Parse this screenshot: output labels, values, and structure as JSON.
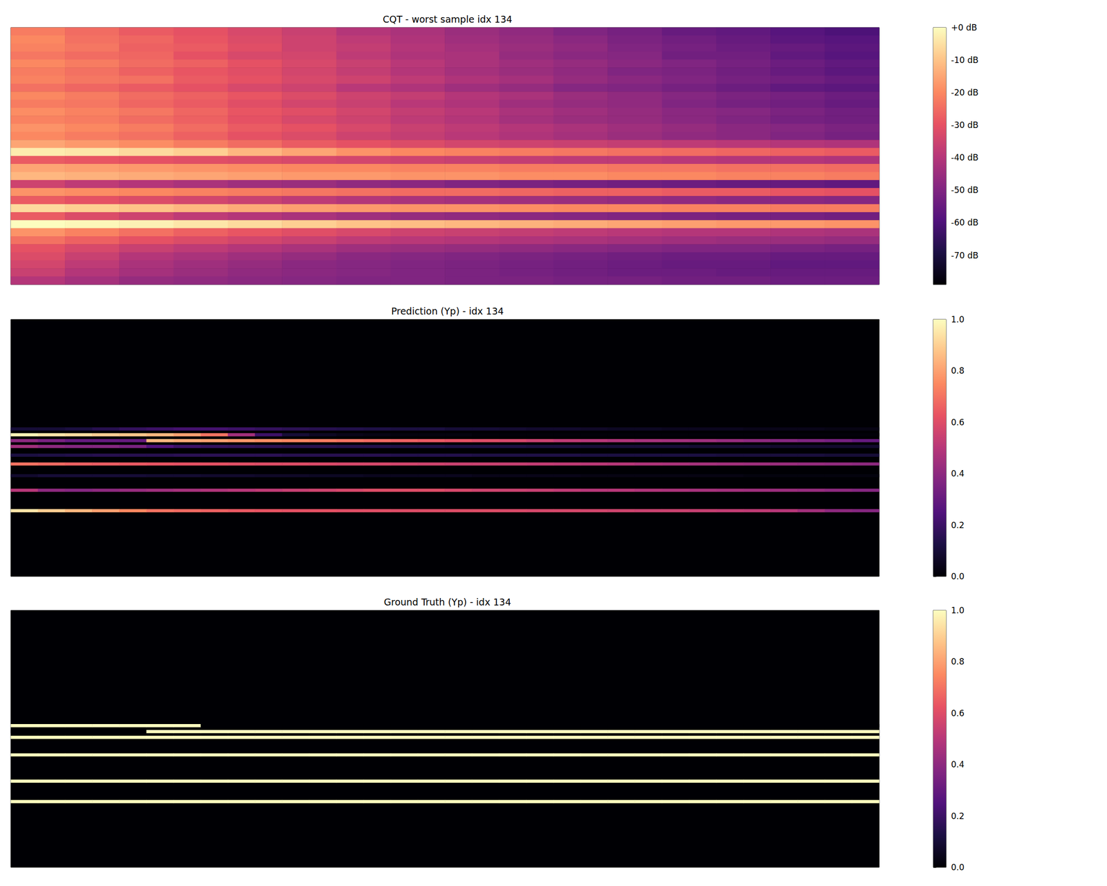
{
  "chart_data": [
    {
      "type": "heatmap",
      "title": "CQT - worst sample idx 134",
      "tick_labels": false,
      "colorbar": {
        "range": [
          -79,
          0
        ],
        "ticks": [
          {
            "value": 0,
            "label": "+0 dB"
          },
          {
            "value": -10,
            "label": "-10 dB"
          },
          {
            "value": -20,
            "label": "-20 dB"
          },
          {
            "value": -30,
            "label": "-30 dB"
          },
          {
            "value": -40,
            "label": "-40 dB"
          },
          {
            "value": -50,
            "label": "-50 dB"
          },
          {
            "value": -60,
            "label": "-60 dB"
          },
          {
            "value": -70,
            "label": "-70 dB"
          }
        ]
      },
      "values": [
        [
          -22,
          -25,
          -28,
          -30,
          -33,
          -36,
          -40,
          -42,
          -45,
          -47,
          -50,
          -52,
          -55,
          -56,
          -58,
          -60
        ],
        [
          -20,
          -24,
          -26,
          -29,
          -32,
          -35,
          -38,
          -41,
          -44,
          -46,
          -48,
          -51,
          -53,
          -55,
          -57,
          -58
        ],
        [
          -21,
          -23,
          -27,
          -28,
          -31,
          -35,
          -37,
          -40,
          -43,
          -45,
          -47,
          -50,
          -52,
          -54,
          -55,
          -57
        ],
        [
          -23,
          -25,
          -26,
          -30,
          -33,
          -34,
          -38,
          -41,
          -42,
          -46,
          -48,
          -49,
          -53,
          -53,
          -56,
          -58
        ],
        [
          -20,
          -22,
          -25,
          -27,
          -30,
          -33,
          -36,
          -39,
          -42,
          -44,
          -46,
          -48,
          -50,
          -52,
          -54,
          -56
        ],
        [
          -22,
          -24,
          -27,
          -29,
          -31,
          -34,
          -37,
          -40,
          -43,
          -45,
          -47,
          -50,
          -51,
          -53,
          -55,
          -57
        ],
        [
          -21,
          -23,
          -24,
          -28,
          -30,
          -33,
          -35,
          -38,
          -41,
          -43,
          -46,
          -48,
          -50,
          -52,
          -53,
          -55
        ],
        [
          -24,
          -26,
          -28,
          -30,
          -33,
          -35,
          -39,
          -41,
          -44,
          -46,
          -49,
          -50,
          -52,
          -54,
          -56,
          -57
        ],
        [
          -20,
          -22,
          -25,
          -27,
          -29,
          -32,
          -35,
          -37,
          -40,
          -42,
          -45,
          -47,
          -49,
          -51,
          -52,
          -54
        ],
        [
          -22,
          -23,
          -26,
          -28,
          -31,
          -34,
          -36,
          -39,
          -41,
          -44,
          -46,
          -47,
          -50,
          -52,
          -53,
          -55
        ],
        [
          -19,
          -21,
          -23,
          -26,
          -29,
          -31,
          -34,
          -37,
          -39,
          -42,
          -44,
          -46,
          -48,
          -49,
          -51,
          -53
        ],
        [
          -21,
          -22,
          -25,
          -27,
          -30,
          -33,
          -35,
          -38,
          -40,
          -43,
          -45,
          -46,
          -48,
          -50,
          -52,
          -53
        ],
        [
          -18,
          -20,
          -22,
          -25,
          -28,
          -30,
          -33,
          -36,
          -38,
          -40,
          -42,
          -44,
          -46,
          -48,
          -49,
          -51
        ],
        [
          -20,
          -22,
          -24,
          -27,
          -30,
          -32,
          -35,
          -37,
          -39,
          -41,
          -43,
          -45,
          -47,
          -48,
          -50,
          -52
        ],
        [
          -15,
          -17,
          -19,
          -22,
          -25,
          -28,
          -30,
          -32,
          -34,
          -35,
          -36,
          -37,
          -38,
          -39,
          -40,
          -41
        ],
        [
          -3,
          -4,
          -6,
          -8,
          -12,
          -15,
          -18,
          -20,
          -21,
          -22,
          -23,
          -24,
          -25,
          -26,
          -27,
          -28
        ],
        [
          -28,
          -29,
          -30,
          -31,
          -32,
          -33,
          -34,
          -35,
          -36,
          -37,
          -38,
          -38,
          -39,
          -40,
          -40,
          -41
        ],
        [
          -15,
          -16,
          -17,
          -18,
          -19,
          -20,
          -20,
          -21,
          -21,
          -22,
          -22,
          -23,
          -23,
          -24,
          -24,
          -25
        ],
        [
          -12,
          -13,
          -14,
          -15,
          -16,
          -17,
          -17,
          -18,
          -18,
          -19,
          -19,
          -20,
          -20,
          -21,
          -21,
          -22
        ],
        [
          -35,
          -38,
          -40,
          -42,
          -44,
          -45,
          -47,
          -48,
          -50,
          -51,
          -52,
          -53,
          -54,
          -55,
          -55,
          -56
        ],
        [
          -18,
          -19,
          -20,
          -21,
          -22,
          -23,
          -24,
          -25,
          -25,
          -26,
          -27,
          -27,
          -28,
          -28,
          -29,
          -30
        ],
        [
          -28,
          -30,
          -32,
          -34,
          -36,
          -38,
          -40,
          -42,
          -43,
          -44,
          -45,
          -46,
          -47,
          -48,
          -48,
          -49
        ],
        [
          -6,
          -8,
          -10,
          -12,
          -14,
          -16,
          -17,
          -18,
          -18,
          -19,
          -20,
          -20,
          -21,
          -21,
          -22,
          -22
        ],
        [
          -28,
          -32,
          -35,
          -38,
          -40,
          -42,
          -44,
          -46,
          -47,
          -48,
          -49,
          -50,
          -51,
          -52,
          -52,
          -53
        ],
        [
          0,
          -1,
          -2,
          -4,
          -6,
          -8,
          -10,
          -11,
          -12,
          -13,
          -14,
          -15,
          -16,
          -17,
          -17,
          -18
        ],
        [
          -18,
          -21,
          -24,
          -27,
          -29,
          -31,
          -33,
          -35,
          -36,
          -37,
          -38,
          -39,
          -40,
          -40,
          -41,
          -42
        ],
        [
          -24,
          -27,
          -30,
          -32,
          -34,
          -36,
          -38,
          -39,
          -40,
          -41,
          -42,
          -43,
          -44,
          -45,
          -45,
          -46
        ],
        [
          -30,
          -33,
          -36,
          -38,
          -40,
          -42,
          -44,
          -45,
          -46,
          -47,
          -48,
          -49,
          -50,
          -50,
          -51,
          -52
        ],
        [
          -32,
          -36,
          -40,
          -42,
          -44,
          -46,
          -48,
          -49,
          -50,
          -51,
          -52,
          -53,
          -54,
          -54,
          -55,
          -55
        ],
        [
          -34,
          -38,
          -42,
          -44,
          -46,
          -48,
          -49,
          -50,
          -51,
          -52,
          -53,
          -54,
          -55,
          -55,
          -56,
          -56
        ],
        [
          -36,
          -40,
          -43,
          -45,
          -47,
          -48,
          -49,
          -50,
          -51,
          -52,
          -53,
          -54,
          -54,
          -55,
          -55,
          -55
        ],
        [
          -40,
          -43,
          -46,
          -47,
          -48,
          -49,
          -50,
          -50,
          -51,
          -51,
          -52,
          -52,
          -53,
          -53,
          -54,
          -54
        ]
      ]
    },
    {
      "type": "heatmap",
      "title": "Prediction (Yp) - idx 134",
      "tick_labels": false,
      "xlim": [
        0,
        32
      ],
      "ylim": [
        0,
        88
      ],
      "colorbar": {
        "range": [
          0,
          1
        ],
        "ticks": [
          {
            "value": 0,
            "label": "0.0"
          },
          {
            "value": 0.2,
            "label": "0.2"
          },
          {
            "value": 0.4,
            "label": "0.4"
          },
          {
            "value": 0.6,
            "label": "0.6"
          },
          {
            "value": 0.8,
            "label": "0.8"
          },
          {
            "value": 1,
            "label": "1.0"
          }
        ]
      },
      "rows": [
        37,
        39,
        41,
        43,
        46,
        49,
        53,
        58,
        65
      ],
      "values": [
        [
          0.1,
          0.1,
          0.12,
          0.15,
          0.18,
          0.2,
          0.22,
          0.22,
          0.2,
          0.18,
          0.16,
          0.15,
          0.14,
          0.13,
          0.12,
          0.12,
          0.1,
          0.1,
          0.09,
          0.08,
          0.08,
          0.07,
          0.06,
          0.06,
          0.05,
          0.05,
          0.05,
          0.04,
          0.04,
          0.04,
          0.03,
          0.03
        ],
        [
          0.98,
          0.95,
          0.93,
          0.9,
          0.88,
          0.85,
          0.8,
          0.7,
          0.45,
          0.2,
          0.1,
          0.06,
          0.04,
          0.03,
          0.02,
          0.02,
          0.02,
          0.01,
          0.01,
          0.01,
          0.01,
          0.01,
          0.01,
          0.01,
          0.01,
          0.01,
          0.01,
          0.01,
          0.01,
          0.01,
          0.01,
          0.01
        ],
        [
          0.4,
          0.35,
          0.3,
          0.3,
          0.3,
          0.85,
          0.82,
          0.8,
          0.78,
          0.76,
          0.74,
          0.72,
          0.7,
          0.68,
          0.66,
          0.64,
          0.62,
          0.6,
          0.58,
          0.55,
          0.52,
          0.5,
          0.48,
          0.46,
          0.45,
          0.44,
          0.42,
          0.4,
          0.38,
          0.36,
          0.34,
          0.3
        ],
        [
          0.45,
          0.4,
          0.38,
          0.38,
          0.35,
          0.25,
          0.2,
          0.18,
          0.17,
          0.16,
          0.15,
          0.15,
          0.14,
          0.14,
          0.13,
          0.13,
          0.12,
          0.12,
          0.12,
          0.11,
          0.11,
          0.1,
          0.1,
          0.1,
          0.1,
          0.09,
          0.09,
          0.09,
          0.08,
          0.08,
          0.08,
          0.08
        ],
        [
          0.12,
          0.13,
          0.14,
          0.15,
          0.15,
          0.15,
          0.16,
          0.16,
          0.16,
          0.16,
          0.15,
          0.15,
          0.15,
          0.15,
          0.14,
          0.14,
          0.14,
          0.13,
          0.13,
          0.13,
          0.13,
          0.12,
          0.12,
          0.12,
          0.12,
          0.12,
          0.11,
          0.11,
          0.11,
          0.11,
          0.1,
          0.1
        ],
        [
          0.7,
          0.68,
          0.66,
          0.65,
          0.64,
          0.63,
          0.62,
          0.62,
          0.61,
          0.6,
          0.6,
          0.59,
          0.58,
          0.58,
          0.57,
          0.56,
          0.55,
          0.55,
          0.54,
          0.53,
          0.52,
          0.51,
          0.5,
          0.48,
          0.47,
          0.46,
          0.45,
          0.44,
          0.43,
          0.42,
          0.41,
          0.4
        ],
        [
          0.08,
          0.1,
          0.1,
          0.1,
          0.1,
          0.09,
          0.09,
          0.08,
          0.08,
          0.07,
          0.07,
          0.06,
          0.06,
          0.05,
          0.05,
          0.05,
          0.05,
          0.04,
          0.04,
          0.04,
          0.04,
          0.03,
          0.03,
          0.03,
          0.03,
          0.03,
          0.03,
          0.02,
          0.02,
          0.02,
          0.02,
          0.02
        ],
        [
          0.5,
          0.4,
          0.38,
          0.4,
          0.42,
          0.44,
          0.46,
          0.48,
          0.5,
          0.52,
          0.54,
          0.56,
          0.58,
          0.6,
          0.6,
          0.6,
          0.58,
          0.56,
          0.55,
          0.54,
          0.52,
          0.5,
          0.5,
          0.48,
          0.47,
          0.46,
          0.45,
          0.44,
          0.43,
          0.42,
          0.4,
          0.38
        ],
        [
          0.95,
          0.9,
          0.85,
          0.8,
          0.75,
          0.7,
          0.68,
          0.66,
          0.64,
          0.63,
          0.62,
          0.62,
          0.61,
          0.61,
          0.6,
          0.6,
          0.6,
          0.6,
          0.59,
          0.58,
          0.58,
          0.57,
          0.56,
          0.55,
          0.55,
          0.54,
          0.53,
          0.52,
          0.5,
          0.45,
          0.4,
          0.38
        ]
      ]
    },
    {
      "type": "heatmap",
      "title": "Ground Truth (Yp) - idx 134",
      "tick_labels": false,
      "xlim": [
        0,
        32
      ],
      "ylim": [
        0,
        88
      ],
      "colorbar": {
        "range": [
          0,
          1
        ],
        "ticks": [
          {
            "value": 0,
            "label": "0.0"
          },
          {
            "value": 0.2,
            "label": "0.2"
          },
          {
            "value": 0.4,
            "label": "0.4"
          },
          {
            "value": 0.6,
            "label": "0.6"
          },
          {
            "value": 0.8,
            "label": "0.8"
          },
          {
            "value": 1,
            "label": "1.0"
          }
        ]
      },
      "rows": [
        39,
        41,
        43,
        49,
        58,
        65
      ],
      "values": [
        [
          1,
          1,
          1,
          1,
          1,
          1,
          1,
          0,
          0,
          0,
          0,
          0,
          0,
          0,
          0,
          0,
          0,
          0,
          0,
          0,
          0,
          0,
          0,
          0,
          0,
          0,
          0,
          0,
          0,
          0,
          0,
          0
        ],
        [
          0,
          0,
          0,
          0,
          0,
          1,
          1,
          1,
          1,
          1,
          1,
          1,
          1,
          1,
          1,
          1,
          1,
          1,
          1,
          1,
          1,
          1,
          1,
          1,
          1,
          1,
          1,
          1,
          1,
          1,
          1,
          1
        ],
        [
          1,
          1,
          1,
          1,
          1,
          1,
          1,
          1,
          1,
          1,
          1,
          1,
          1,
          1,
          1,
          1,
          1,
          1,
          1,
          1,
          1,
          1,
          1,
          1,
          1,
          1,
          1,
          1,
          1,
          1,
          1,
          1
        ],
        [
          1,
          1,
          1,
          1,
          1,
          1,
          1,
          1,
          1,
          1,
          1,
          1,
          1,
          1,
          1,
          1,
          1,
          1,
          1,
          1,
          1,
          1,
          1,
          1,
          1,
          1,
          1,
          1,
          1,
          1,
          1,
          1
        ],
        [
          1,
          1,
          1,
          1,
          1,
          1,
          1,
          1,
          1,
          1,
          1,
          1,
          1,
          1,
          1,
          1,
          1,
          1,
          1,
          1,
          1,
          1,
          1,
          1,
          1,
          1,
          1,
          1,
          1,
          1,
          1,
          1
        ],
        [
          1,
          1,
          1,
          1,
          1,
          1,
          1,
          1,
          1,
          1,
          1,
          1,
          1,
          1,
          1,
          1,
          1,
          1,
          1,
          1,
          1,
          1,
          1,
          1,
          1,
          1,
          1,
          1,
          1,
          1,
          1,
          1
        ]
      ]
    }
  ]
}
